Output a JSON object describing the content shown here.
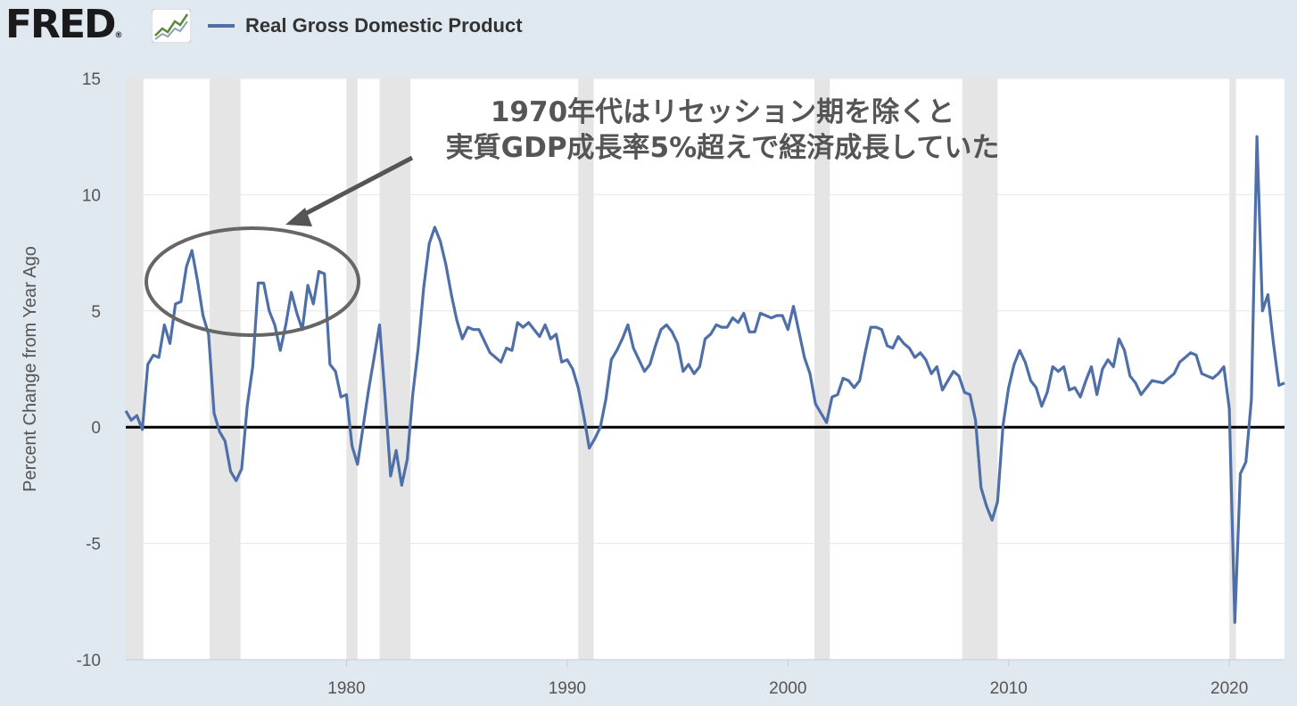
{
  "header": {
    "logo_text": "FRED",
    "logo_mark": "®",
    "logo_icon": "line-chart-icon"
  },
  "annotation": {
    "line1": "1970年代はリセッション期を除くと",
    "line2": "実質GDP成長率5%超えで経済成長していた"
  },
  "colors": {
    "background": "#e1e9f0",
    "plot_background": "#ffffff",
    "series": "#4f6fa8",
    "recession_band": "#e5e5e5",
    "zero_line": "#000000",
    "annotation": "#666666"
  },
  "chart_data": {
    "type": "line",
    "title": "",
    "xlabel": "",
    "ylabel": "Percent Change from Year Ago",
    "xlim": [
      1970.0,
      2022.5
    ],
    "ylim": [
      -10,
      15
    ],
    "yticks": [
      -10,
      -5,
      0,
      5,
      10,
      15
    ],
    "ytick_labels": [
      "-10",
      "-5",
      "0",
      "5",
      "10",
      "15"
    ],
    "xticks": [
      1980,
      1990,
      2000,
      2010,
      2020
    ],
    "xtick_labels": [
      "1980",
      "1990",
      "2000",
      "2010",
      "2020"
    ],
    "legend": "top-left",
    "grid": "horizontal",
    "reference_line": 0,
    "recessions": [
      [
        1970.0,
        1970.8
      ],
      [
        1973.8,
        1975.2
      ],
      [
        1980.0,
        1980.5
      ],
      [
        1981.5,
        1982.9
      ],
      [
        1990.5,
        1991.2
      ],
      [
        2001.2,
        2001.9
      ],
      [
        2007.9,
        2009.5
      ],
      [
        2020.0,
        2020.3
      ]
    ],
    "series": [
      {
        "name": "Real Gross Domestic Product",
        "x": [
          1970.0,
          1970.25,
          1970.5,
          1970.75,
          1971.0,
          1971.25,
          1971.5,
          1971.75,
          1972.0,
          1972.25,
          1972.5,
          1972.75,
          1973.0,
          1973.25,
          1973.5,
          1973.75,
          1974.0,
          1974.25,
          1974.5,
          1974.75,
          1975.0,
          1975.25,
          1975.5,
          1975.75,
          1976.0,
          1976.25,
          1976.5,
          1976.75,
          1977.0,
          1977.25,
          1977.5,
          1977.75,
          1978.0,
          1978.25,
          1978.5,
          1978.75,
          1979.0,
          1979.25,
          1979.5,
          1979.75,
          1980.0,
          1980.25,
          1980.5,
          1980.75,
          1981.0,
          1981.25,
          1981.5,
          1981.75,
          1982.0,
          1982.25,
          1982.5,
          1982.75,
          1983.0,
          1983.25,
          1983.5,
          1983.75,
          1984.0,
          1984.25,
          1984.5,
          1984.75,
          1985.0,
          1985.25,
          1985.5,
          1985.75,
          1986.0,
          1986.5,
          1987.0,
          1987.25,
          1987.5,
          1987.75,
          1988.0,
          1988.25,
          1988.5,
          1988.75,
          1989.0,
          1989.25,
          1989.5,
          1989.75,
          1990.0,
          1990.25,
          1990.5,
          1990.75,
          1991.0,
          1991.25,
          1991.5,
          1991.75,
          1992.0,
          1992.25,
          1992.5,
          1992.75,
          1993.0,
          1993.25,
          1993.5,
          1993.75,
          1994.0,
          1994.25,
          1994.5,
          1994.75,
          1995.0,
          1995.25,
          1995.5,
          1995.75,
          1996.0,
          1996.25,
          1996.5,
          1996.75,
          1997.0,
          1997.25,
          1997.5,
          1997.75,
          1998.0,
          1998.25,
          1998.5,
          1998.75,
          1999.0,
          1999.25,
          1999.5,
          1999.75,
          2000.0,
          2000.25,
          2000.5,
          2000.75,
          2001.0,
          2001.25,
          2001.5,
          2001.75,
          2002.0,
          2002.25,
          2002.5,
          2002.75,
          2003.0,
          2003.25,
          2003.5,
          2003.75,
          2004.0,
          2004.25,
          2004.5,
          2004.75,
          2005.0,
          2005.25,
          2005.5,
          2005.75,
          2006.0,
          2006.25,
          2006.5,
          2006.75,
          2007.0,
          2007.25,
          2007.5,
          2007.75,
          2008.0,
          2008.25,
          2008.5,
          2008.75,
          2009.0,
          2009.25,
          2009.5,
          2009.75,
          2010.0,
          2010.25,
          2010.5,
          2010.75,
          2011.0,
          2011.25,
          2011.5,
          2011.75,
          2012.0,
          2012.25,
          2012.5,
          2012.75,
          2013.0,
          2013.25,
          2013.5,
          2013.75,
          2014.0,
          2014.25,
          2014.5,
          2014.75,
          2015.0,
          2015.25,
          2015.5,
          2015.75,
          2016.0,
          2016.5,
          2017.0,
          2017.25,
          2017.5,
          2017.75,
          2018.0,
          2018.25,
          2018.5,
          2018.75,
          2019.0,
          2019.25,
          2019.5,
          2019.75,
          2020.0,
          2020.25,
          2020.5,
          2020.75,
          2021.0,
          2021.25,
          2021.5,
          2021.75,
          2022.0,
          2022.25,
          2022.5
        ],
        "y": [
          0.7,
          0.3,
          0.5,
          -0.1,
          2.7,
          3.1,
          3.0,
          4.4,
          3.6,
          5.3,
          5.4,
          6.9,
          7.6,
          6.3,
          4.8,
          4.0,
          0.6,
          -0.2,
          -0.6,
          -1.9,
          -2.3,
          -1.8,
          0.9,
          2.6,
          6.2,
          6.2,
          5.0,
          4.4,
          3.3,
          4.4,
          5.8,
          4.9,
          4.2,
          6.1,
          5.3,
          6.7,
          6.6,
          2.7,
          2.4,
          1.3,
          1.4,
          -0.8,
          -1.6,
          0.0,
          1.6,
          3.0,
          4.4,
          1.3,
          -2.1,
          -1.0,
          -2.5,
          -1.4,
          1.4,
          3.4,
          6.0,
          7.9,
          8.6,
          8.0,
          7.0,
          5.7,
          4.6,
          3.8,
          4.3,
          4.2,
          4.2,
          3.2,
          2.8,
          3.4,
          3.3,
          4.5,
          4.3,
          4.5,
          4.2,
          3.9,
          4.4,
          3.8,
          4.0,
          2.8,
          2.9,
          2.5,
          1.7,
          0.5,
          -0.9,
          -0.5,
          0.0,
          1.2,
          2.9,
          3.3,
          3.8,
          4.4,
          3.4,
          2.9,
          2.4,
          2.7,
          3.5,
          4.2,
          4.4,
          4.1,
          3.6,
          2.4,
          2.7,
          2.3,
          2.6,
          3.8,
          4.0,
          4.4,
          4.3,
          4.3,
          4.7,
          4.5,
          4.9,
          4.1,
          4.1,
          4.9,
          4.8,
          4.7,
          4.8,
          4.8,
          4.2,
          5.2,
          4.1,
          3.0,
          2.3,
          1.0,
          0.6,
          0.2,
          1.3,
          1.4,
          2.1,
          2.0,
          1.7,
          2.0,
          3.2,
          4.3,
          4.3,
          4.2,
          3.5,
          3.4,
          3.9,
          3.6,
          3.4,
          3.0,
          3.2,
          2.9,
          2.3,
          2.6,
          1.6,
          2.0,
          2.4,
          2.2,
          1.5,
          1.4,
          0.3,
          -2.6,
          -3.4,
          -4.0,
          -3.2,
          0.1,
          1.7,
          2.7,
          3.3,
          2.8,
          2.0,
          1.7,
          0.9,
          1.5,
          2.6,
          2.4,
          2.6,
          1.6,
          1.7,
          1.3,
          2.0,
          2.6,
          1.4,
          2.5,
          2.9,
          2.6,
          3.8,
          3.3,
          2.2,
          1.9,
          1.4,
          2.0,
          1.9,
          2.1,
          2.3,
          2.8,
          3.0,
          3.2,
          3.1,
          2.3,
          2.2,
          2.1,
          2.3,
          2.6,
          0.8,
          -8.4,
          -2.0,
          -1.5,
          1.2,
          12.5,
          5.0,
          5.7,
          3.6,
          1.8,
          1.9
        ]
      }
    ]
  }
}
